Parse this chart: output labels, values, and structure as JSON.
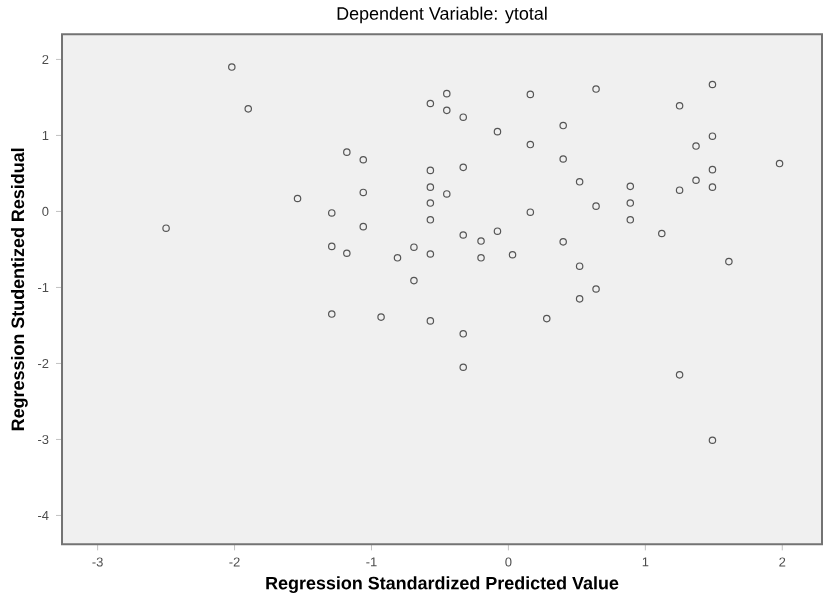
{
  "chart_data": {
    "type": "scatter",
    "title": "Dependent Variable: ytotal",
    "xlabel": "Regression Standardized Predicted Value",
    "ylabel": "Regression Studentized Residual",
    "xlim": [
      -3.26,
      2.29
    ],
    "ylim": [
      -4.38,
      2.33
    ],
    "xticks": [
      -3,
      -2,
      -1,
      0,
      1,
      2
    ],
    "yticks": [
      -4,
      -3,
      -2,
      -1,
      0,
      1,
      2
    ],
    "grid": false,
    "marker": "circle",
    "series": [
      {
        "color": "#555555",
        "x": [
          -2.02,
          -1.9,
          -2.5,
          -1.54,
          -1.29,
          -1.29,
          -1.18,
          -1.18,
          -1.06,
          -1.06,
          -1.06,
          -0.81,
          -0.69,
          -0.69,
          -0.57,
          -0.57,
          -0.57,
          -0.57,
          -0.57,
          -0.57,
          -0.45,
          -0.45,
          -0.45,
          -0.33,
          -0.33,
          -0.33,
          -0.2,
          -0.2,
          -0.08,
          -0.08,
          0.03,
          0.16,
          0.16,
          0.16,
          0.4,
          0.4,
          0.4,
          0.52,
          0.52,
          0.64,
          0.64,
          0.89,
          0.89,
          0.89,
          1.12,
          1.25,
          1.25,
          1.37,
          1.37,
          1.49,
          1.49,
          1.49,
          1.49,
          1.61,
          1.98,
          -1.29,
          -0.93,
          -0.57,
          -0.33,
          -0.33,
          0.28,
          0.52,
          0.64,
          1.25,
          1.49
        ],
        "values": [
          1.9,
          1.35,
          -0.22,
          0.17,
          -0.02,
          -0.46,
          0.78,
          -0.55,
          0.68,
          0.25,
          -0.2,
          -0.61,
          -0.47,
          -0.91,
          1.42,
          0.54,
          0.32,
          0.11,
          -0.11,
          -0.56,
          1.55,
          1.33,
          0.23,
          1.24,
          0.58,
          -0.31,
          -0.39,
          -0.61,
          1.05,
          -0.26,
          -0.57,
          1.54,
          0.88,
          -0.01,
          1.13,
          0.69,
          -0.4,
          0.39,
          -0.72,
          1.61,
          0.07,
          0.33,
          0.11,
          -0.11,
          -0.29,
          1.39,
          0.28,
          0.86,
          0.41,
          1.67,
          0.99,
          0.55,
          0.32,
          -0.66,
          0.63,
          -1.35,
          -1.39,
          -1.44,
          -1.61,
          -2.05,
          -1.41,
          -1.15,
          -1.02,
          -2.15,
          -3.01
        ]
      }
    ]
  }
}
